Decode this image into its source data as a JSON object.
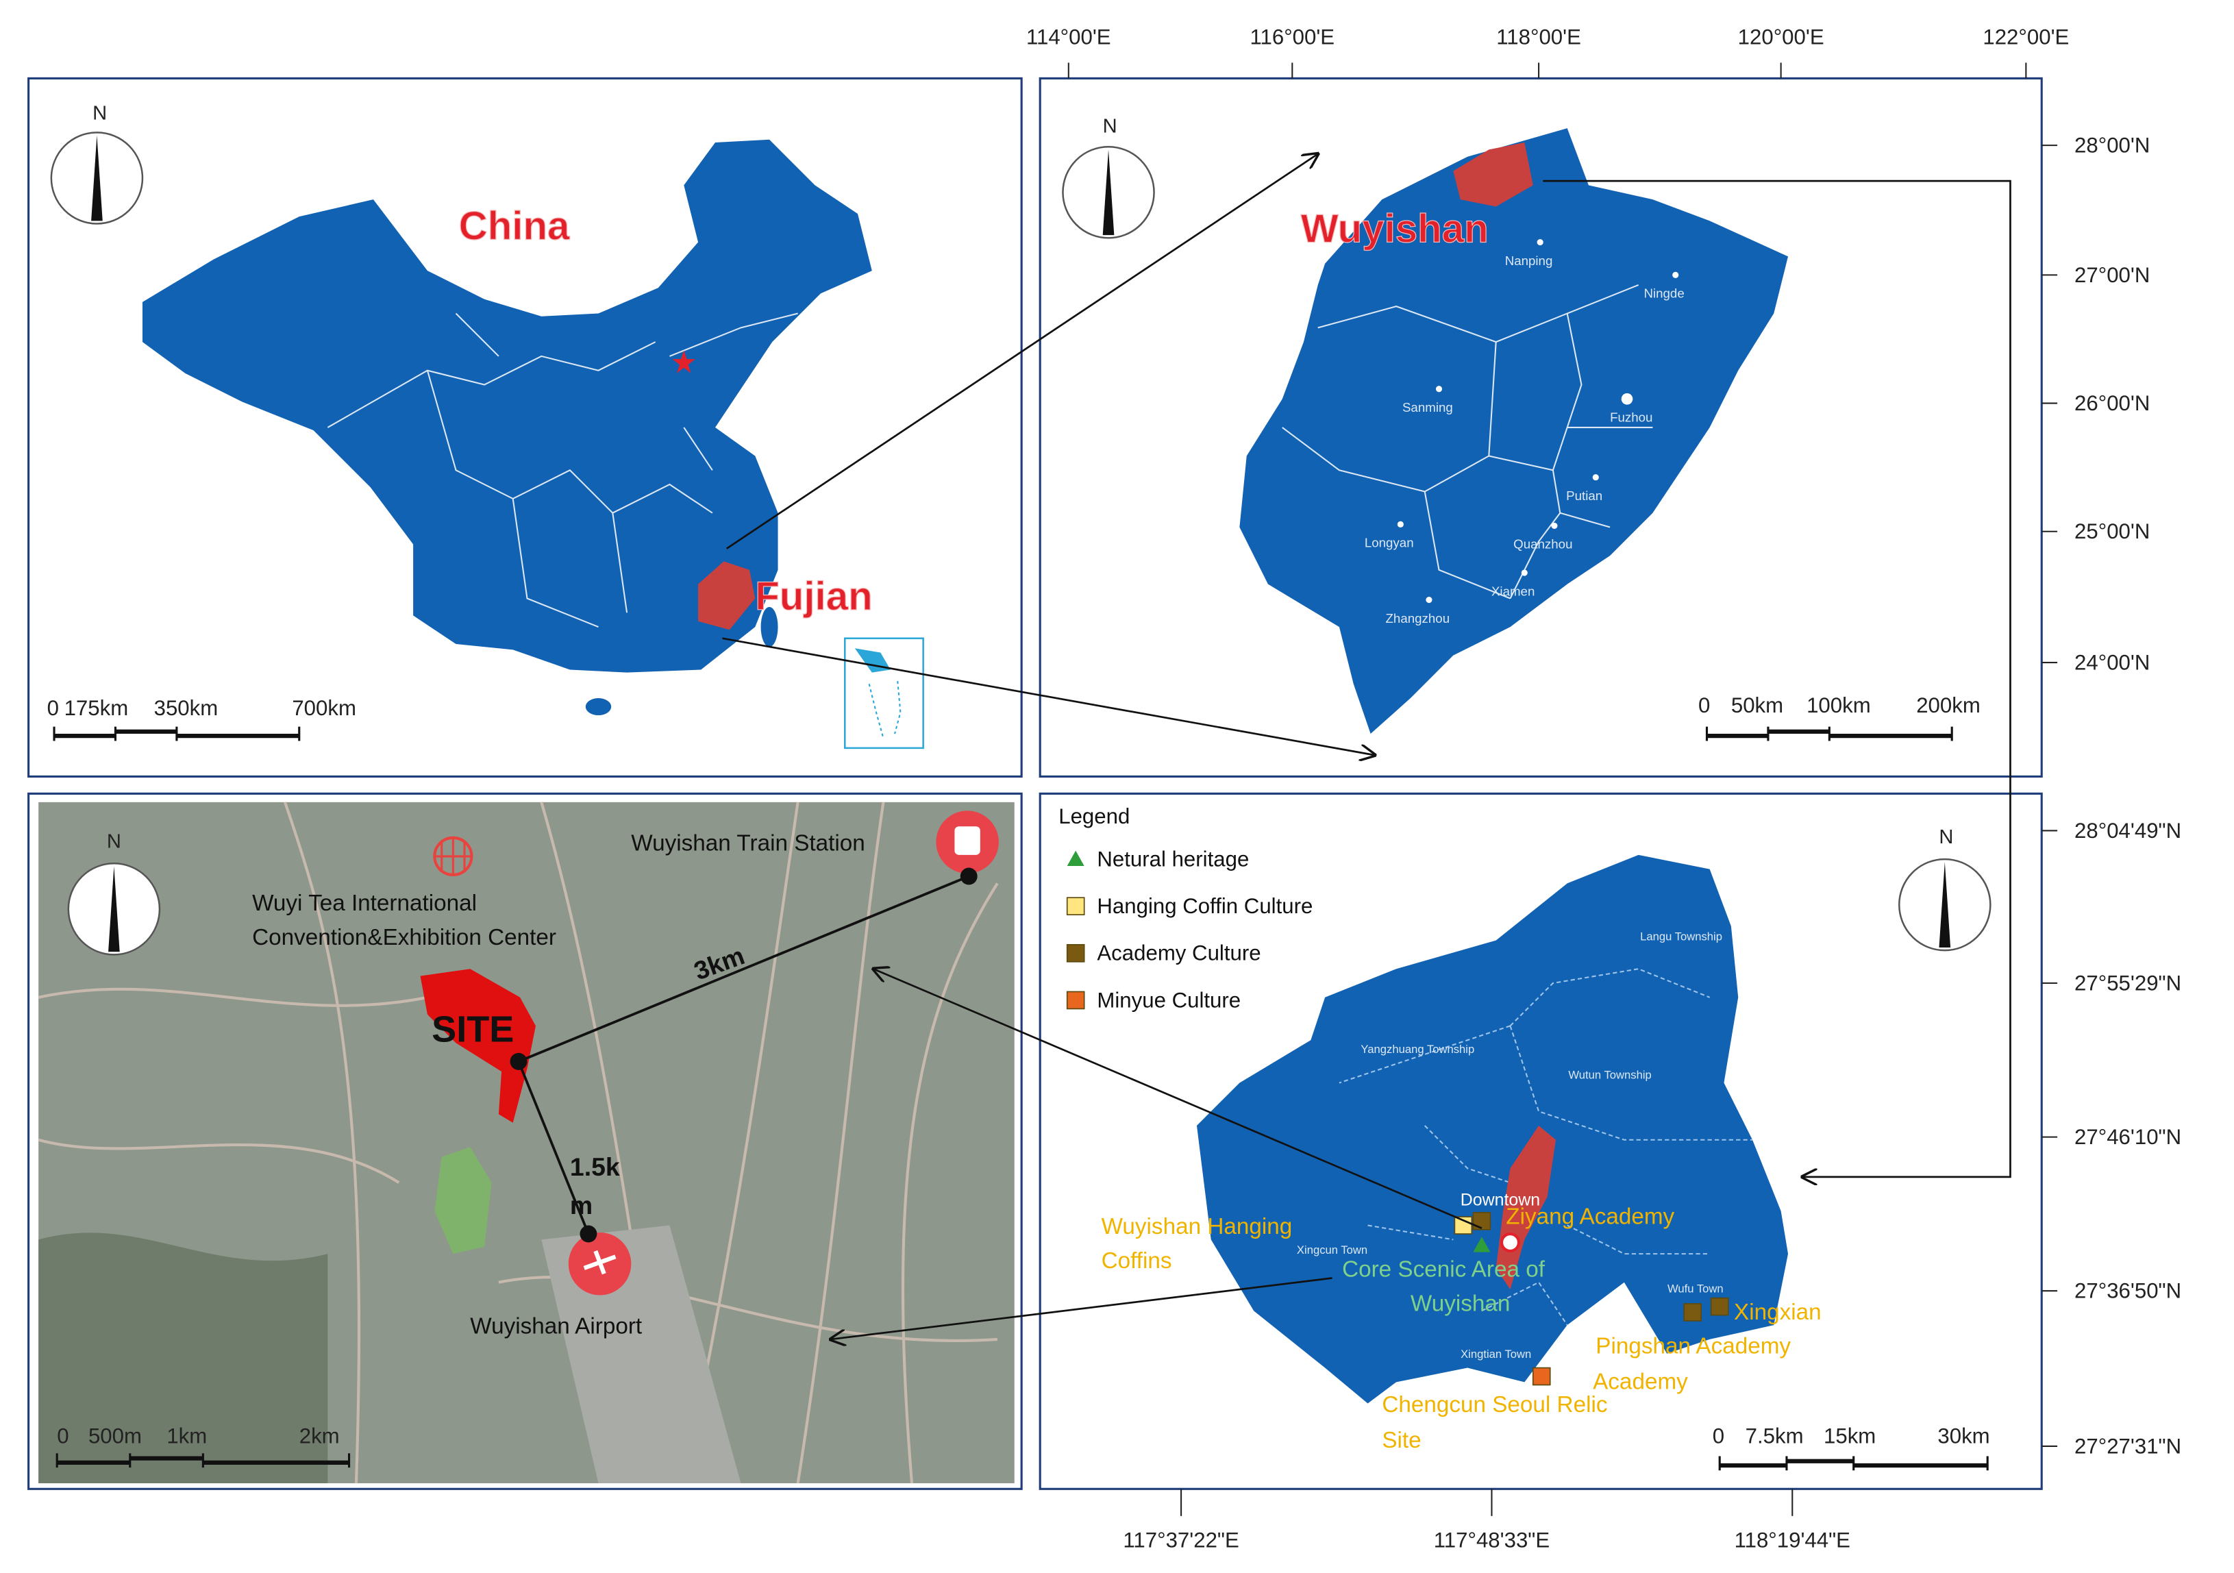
{
  "china_map": {
    "north": "N",
    "label": "China",
    "province_label": "Fujian",
    "scale_labels": [
      "0",
      "175km",
      "350km",
      "700km"
    ]
  },
  "fujian_map": {
    "north": "N",
    "label": "Wuyishan",
    "cities": [
      "Nanping",
      "Ningde",
      "Sanming",
      "Fuzhou",
      "Putian",
      "Longyan",
      "Quanzhou",
      "Xiamen",
      "Zhangzhou"
    ],
    "scale_labels": [
      "0",
      "50km",
      "100km",
      "200km"
    ]
  },
  "site_map": {
    "north": "N",
    "train_station": "Wuyishan Train Station",
    "convention_center": [
      "Wuyi Tea International",
      "Convention&Exhibition Center"
    ],
    "distance_station": "3km",
    "site": "SITE",
    "distance_airport": [
      "1.5k",
      "m"
    ],
    "airport": "Wuyishan Airport",
    "scale_labels": [
      "0",
      "500m",
      "1km",
      "2km"
    ]
  },
  "wuyishan_map": {
    "north": "N",
    "legend": {
      "title": "Legend",
      "items": [
        {
          "label": "Netural heritage",
          "color": "#2e9e3a",
          "shape": "triangle"
        },
        {
          "label": "Hanging Coffin Culture",
          "color": "#ffe680",
          "shape": "square"
        },
        {
          "label": "Academy Culture",
          "color": "#7a5a10",
          "shape": "square"
        },
        {
          "label": "Minyue Culture",
          "color": "#e8661e",
          "shape": "square"
        }
      ]
    },
    "townships": [
      "Langu Township",
      "Yangzhuang Township",
      "Wutun Township",
      "Xingcun Town",
      "Xingtian Town",
      "Wufu Town"
    ],
    "downtown": "Downtown",
    "places": {
      "hanging_coffins": [
        "Wuyishan Hanging",
        "Coffins"
      ],
      "ziyang": "Ziyang Academy",
      "core_scenic": [
        "Core Scenic Area of",
        "Wuyishan"
      ],
      "academies": [
        "Xingxian",
        "Pingshan Academy",
        "Academy"
      ],
      "chengcun": [
        "Chengcun Seoul Relic",
        "Site"
      ]
    },
    "scale_labels": [
      "0",
      "7.5km",
      "15km",
      "30km"
    ]
  },
  "graticule": {
    "top": [
      "114°00'E",
      "116°00'E",
      "118°00'E",
      "120°00'E",
      "122°00'E"
    ],
    "right_upper": [
      "28°00'N",
      "27°00'N",
      "26°00'N",
      "25°00'N",
      "24°00'N"
    ],
    "right_lower": [
      "28°04'49\"N",
      "27°55'29\"N",
      "27°46'10\"N",
      "27°36'50\"N",
      "27°27'31\"N"
    ],
    "bottom": [
      "117°37'22\"E",
      "117°48'33\"E",
      "118°19'44\"E"
    ]
  }
}
